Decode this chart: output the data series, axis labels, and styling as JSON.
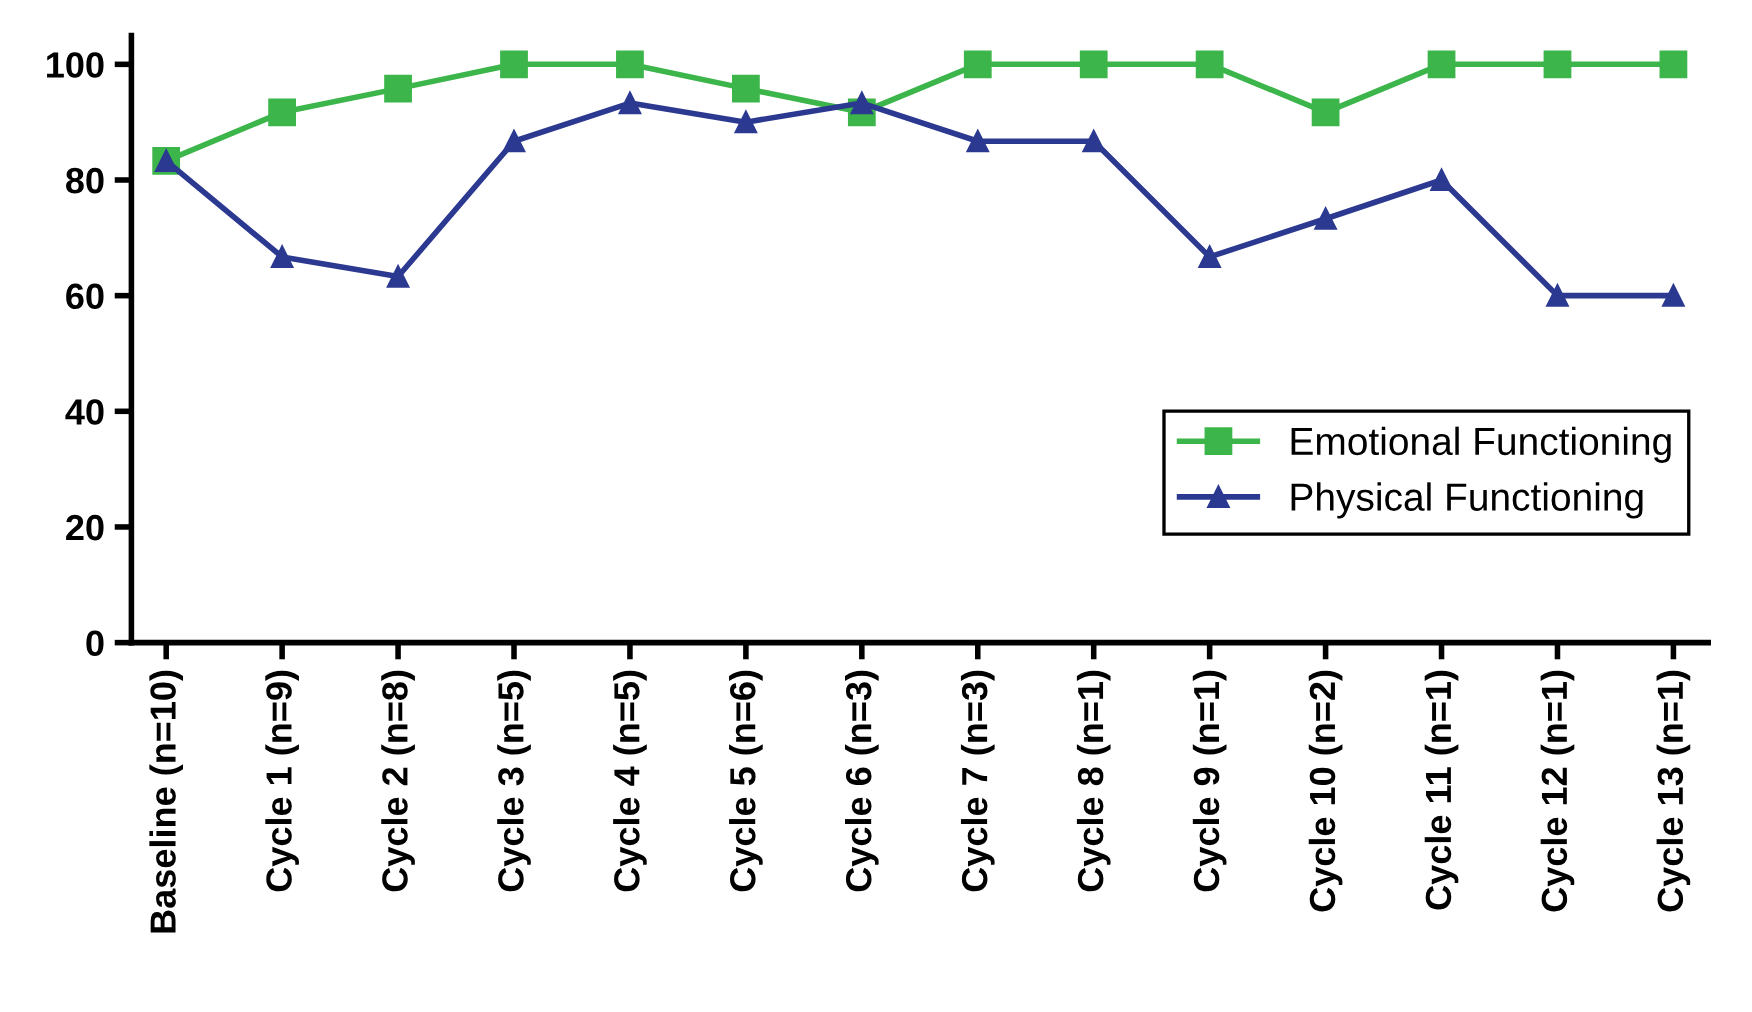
{
  "chart_data": {
    "type": "line",
    "categories": [
      "Baseline (n=10)",
      "Cycle 1 (n=9)",
      "Cycle 2 (n=8)",
      "Cycle 3 (n=5)",
      "Cycle 4 (n=5)",
      "Cycle 5 (n=6)",
      "Cycle 6 (n=3)",
      "Cycle 7 (n=3)",
      "Cycle 8 (n=1)",
      "Cycle 9 (n=1)",
      "Cycle 10 (n=2)",
      "Cycle 11 (n=1)",
      "Cycle 12 (n=1)",
      "Cycle 13 (n=1)"
    ],
    "series": [
      {
        "name": "Emotional Functioning",
        "color": "#3cb54a",
        "marker": "square",
        "values": [
          83.3,
          91.7,
          95.8,
          100,
          100,
          95.8,
          91.7,
          100,
          100,
          100,
          91.7,
          100,
          100,
          100
        ]
      },
      {
        "name": "Physical Functioning",
        "color": "#2b3990",
        "marker": "triangle",
        "values": [
          83.3,
          66.7,
          63.3,
          86.7,
          93.3,
          90,
          93.3,
          86.7,
          86.7,
          66.7,
          73.3,
          80,
          60,
          60
        ]
      }
    ],
    "ylim": [
      0,
      105
    ],
    "yticks": [
      0,
      20,
      40,
      60,
      80,
      100
    ],
    "grid": false,
    "legend": "right",
    "line_style": "solid"
  }
}
